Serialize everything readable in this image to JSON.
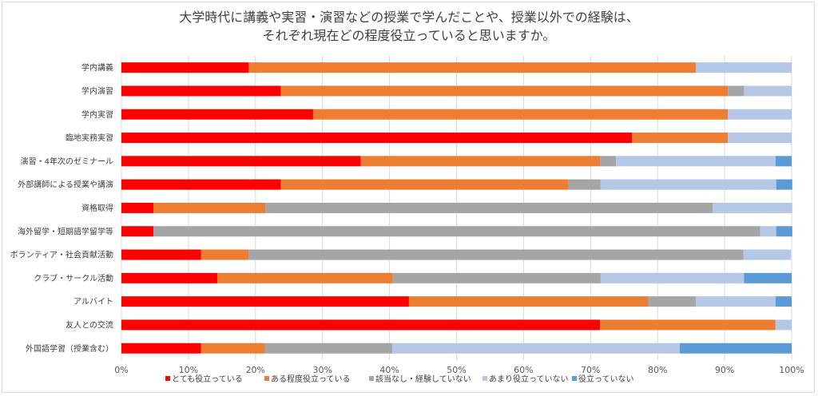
{
  "chart_data": {
    "type": "bar",
    "orientation": "horizontal",
    "stacked": "percent",
    "title_line1": "大学時代に講義や実習・演習などの授業で学んだことや、授業以外での経験は、",
    "title_line2": "それぞれ現在どの程度役立っていると思いますか。",
    "categories": [
      "学内講義",
      "学内演習",
      "学内実習",
      "臨地実務実習",
      "演習・4年次のゼミナール",
      "外部講師による授業や講演",
      "資格取得",
      "海外留学・短期語学留学等",
      "ボランティア・社会貢献活動",
      "クラブ・サークル活動",
      "アルバイト",
      "友人との交流",
      "外国語学習（授業含む）"
    ],
    "series": [
      {
        "name": "とても役立っている",
        "color": "#ff0000",
        "values": [
          19.0,
          23.8,
          28.6,
          76.2,
          35.7,
          23.8,
          4.8,
          4.8,
          11.9,
          14.3,
          42.9,
          71.4,
          11.9
        ]
      },
      {
        "name": "ある程度役立っている",
        "color": "#ed7d31",
        "values": [
          66.7,
          66.7,
          61.9,
          14.3,
          35.7,
          42.9,
          16.7,
          0.0,
          7.1,
          26.2,
          35.7,
          26.2,
          9.5
        ]
      },
      {
        "name": "該当なし・経験していない",
        "color": "#a5a5a5",
        "values": [
          0.0,
          2.4,
          0.0,
          0.0,
          2.4,
          4.8,
          66.7,
          90.5,
          73.8,
          31.0,
          7.1,
          0.0,
          19.0
        ]
      },
      {
        "name": "あまり役立っていない",
        "color": "#b4c7e7",
        "values": [
          14.3,
          7.1,
          9.5,
          9.5,
          23.8,
          26.2,
          11.9,
          2.4,
          7.1,
          21.4,
          11.9,
          2.4,
          42.9
        ]
      },
      {
        "name": "役立っていない",
        "color": "#5b9bd5",
        "values": [
          0.0,
          0.0,
          0.0,
          0.0,
          2.4,
          2.4,
          0.0,
          2.4,
          0.0,
          7.1,
          2.4,
          0.0,
          16.7
        ]
      }
    ],
    "xlim": [
      0,
      100
    ],
    "xticks": [
      "0%",
      "10%",
      "20%",
      "30%",
      "40%",
      "50%",
      "60%",
      "70%",
      "80%",
      "90%",
      "100%"
    ],
    "grid": true,
    "legend_position": "bottom"
  }
}
